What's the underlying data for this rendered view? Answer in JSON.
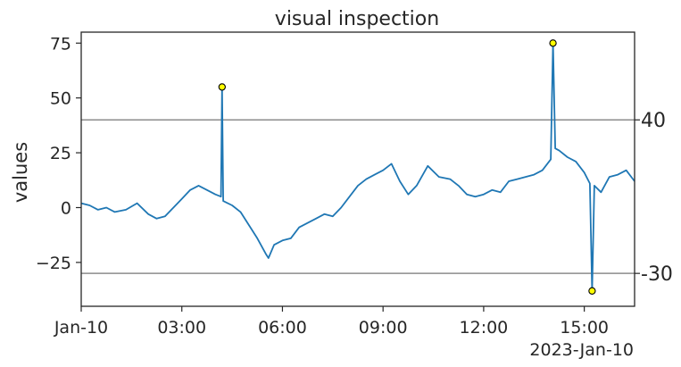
{
  "chart_data": {
    "type": "line",
    "title": "visual inspection",
    "ylabel": "values",
    "xlabel": "",
    "x_range": [
      "00:00",
      "16:30"
    ],
    "x_ticks": [
      {
        "t": "00:00",
        "label": "Jan-10"
      },
      {
        "t": "03:00",
        "label": "03:00"
      },
      {
        "t": "06:00",
        "label": "06:00"
      },
      {
        "t": "09:00",
        "label": "09:00"
      },
      {
        "t": "12:00",
        "label": "12:00"
      },
      {
        "t": "15:00",
        "label": "15:00"
      }
    ],
    "x_offset_label": "2023-Jan-10",
    "ylim": [
      -45,
      80
    ],
    "y_ticks": [
      {
        "v": 75,
        "label": "75"
      },
      {
        "v": 50,
        "label": "50"
      },
      {
        "v": 25,
        "label": "25"
      },
      {
        "v": 0,
        "label": "0"
      },
      {
        "v": -25,
        "label": "−25"
      }
    ],
    "threshold_lines": [
      {
        "value": 40,
        "label": "40"
      },
      {
        "value": -30,
        "label": "-30"
      }
    ],
    "series": [
      {
        "color": "#1f77b4",
        "points": [
          [
            "00:00",
            2
          ],
          [
            "00:15",
            1
          ],
          [
            "00:30",
            -1
          ],
          [
            "00:45",
            0
          ],
          [
            "01:00",
            -2
          ],
          [
            "01:20",
            -1
          ],
          [
            "01:40",
            2
          ],
          [
            "02:00",
            -3
          ],
          [
            "02:15",
            -5
          ],
          [
            "02:30",
            -4
          ],
          [
            "02:45",
            0
          ],
          [
            "03:00",
            4
          ],
          [
            "03:15",
            8
          ],
          [
            "03:30",
            10
          ],
          [
            "03:45",
            8
          ],
          [
            "04:00",
            6
          ],
          [
            "04:10",
            5
          ],
          [
            "04:12",
            55
          ],
          [
            "04:14",
            3
          ],
          [
            "04:30",
            1
          ],
          [
            "04:45",
            -2
          ],
          [
            "05:00",
            -8
          ],
          [
            "05:15",
            -14
          ],
          [
            "05:30",
            -21
          ],
          [
            "05:35",
            -23
          ],
          [
            "05:45",
            -17
          ],
          [
            "06:00",
            -15
          ],
          [
            "06:15",
            -14
          ],
          [
            "06:30",
            -9
          ],
          [
            "06:45",
            -7
          ],
          [
            "07:00",
            -5
          ],
          [
            "07:15",
            -3
          ],
          [
            "07:30",
            -4
          ],
          [
            "07:45",
            0
          ],
          [
            "08:00",
            5
          ],
          [
            "08:15",
            10
          ],
          [
            "08:30",
            13
          ],
          [
            "08:45",
            15
          ],
          [
            "09:00",
            17
          ],
          [
            "09:15",
            20
          ],
          [
            "09:30",
            12
          ],
          [
            "09:45",
            6
          ],
          [
            "10:00",
            10
          ],
          [
            "10:20",
            19
          ],
          [
            "10:40",
            14
          ],
          [
            "11:00",
            13
          ],
          [
            "11:15",
            10
          ],
          [
            "11:30",
            6
          ],
          [
            "11:45",
            5
          ],
          [
            "12:00",
            6
          ],
          [
            "12:15",
            8
          ],
          [
            "12:30",
            7
          ],
          [
            "12:45",
            12
          ],
          [
            "13:00",
            13
          ],
          [
            "13:15",
            14
          ],
          [
            "13:30",
            15
          ],
          [
            "13:45",
            17
          ],
          [
            "14:00",
            22
          ],
          [
            "14:04",
            75
          ],
          [
            "14:08",
            27
          ],
          [
            "14:15",
            26
          ],
          [
            "14:30",
            23
          ],
          [
            "14:45",
            21
          ],
          [
            "15:00",
            16
          ],
          [
            "15:10",
            11
          ],
          [
            "15:14",
            -38
          ],
          [
            "15:18",
            10
          ],
          [
            "15:30",
            7
          ],
          [
            "15:45",
            14
          ],
          [
            "16:00",
            15
          ],
          [
            "16:15",
            17
          ],
          [
            "16:30",
            12
          ]
        ]
      }
    ],
    "anomalies": [
      {
        "t": "04:12",
        "value": 55
      },
      {
        "t": "14:04",
        "value": 75
      },
      {
        "t": "15:14",
        "value": -38
      }
    ],
    "grid": false,
    "legend": "none"
  }
}
